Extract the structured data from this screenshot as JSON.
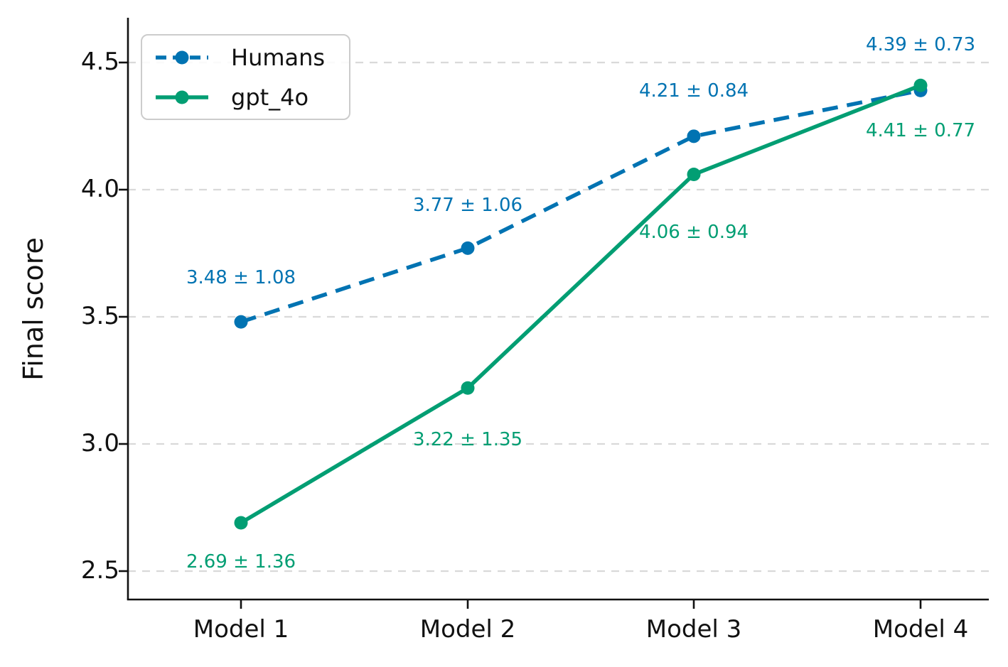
{
  "chart_data": {
    "type": "line",
    "title": "",
    "xlabel": "",
    "ylabel": "Final score",
    "categories": [
      "Model 1",
      "Model 2",
      "Model 3",
      "Model 4"
    ],
    "ytick_labels": [
      "2.5",
      "3.0",
      "3.5",
      "4.0",
      "4.5"
    ],
    "ytick_values": [
      2.5,
      3.0,
      3.5,
      4.0,
      4.5
    ],
    "ylim": [
      2.39,
      4.66
    ],
    "grid": "horizontal-dashed",
    "legend_position": "upper-left",
    "series": [
      {
        "name": "Humans",
        "color": "#0173b2",
        "line_style": "dashed",
        "marker": "circle",
        "values": [
          3.48,
          3.77,
          4.21,
          4.39
        ],
        "errors": [
          1.08,
          1.06,
          0.84,
          0.73
        ],
        "point_labels": [
          "3.48 ± 1.08",
          "3.77 ± 1.06",
          "4.21 ± 0.84",
          "4.39 ± 0.73"
        ]
      },
      {
        "name": "gpt_4o",
        "color": "#029e73",
        "line_style": "solid",
        "marker": "circle",
        "values": [
          2.69,
          3.22,
          4.06,
          4.41
        ],
        "errors": [
          1.36,
          1.35,
          0.94,
          0.77
        ],
        "point_labels": [
          "2.69 ± 1.36",
          "3.22 ± 1.35",
          "4.06 ± 0.94",
          "4.41 ± 0.77"
        ]
      }
    ]
  },
  "colors": {
    "axis": "#111111",
    "grid": "#d9d9d9",
    "background": "#ffffff"
  }
}
